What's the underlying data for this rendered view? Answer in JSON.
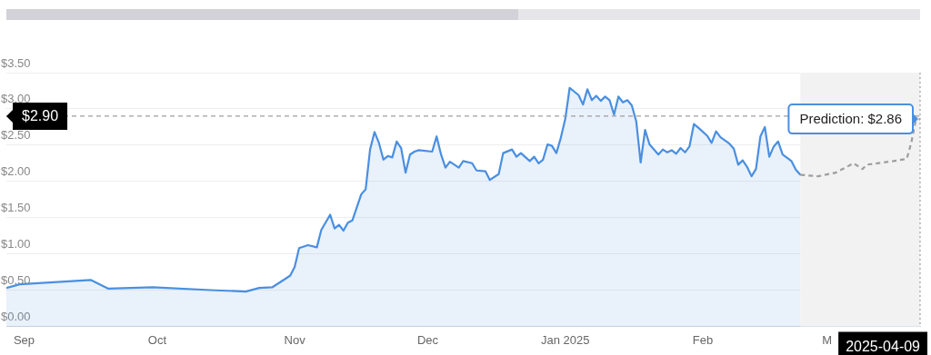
{
  "chart_data": {
    "type": "line",
    "xlim": [
      "2024-08-28",
      "2025-03-22"
    ],
    "xticks": [
      {
        "value": "2024-09-01",
        "label": "Sep"
      },
      {
        "value": "2024-10-01",
        "label": "Oct"
      },
      {
        "value": "2024-11-01",
        "label": "Nov"
      },
      {
        "value": "2024-12-01",
        "label": "Dec"
      },
      {
        "value": "2025-01-01",
        "label": "Jan 2025"
      },
      {
        "value": "2025-02-01",
        "label": "Feb"
      },
      {
        "value": "2025-03-01",
        "label": "M"
      }
    ],
    "ylim": [
      0,
      3.5
    ],
    "yticks": [
      {
        "value": 0,
        "label": "$0.00"
      },
      {
        "value": 0.5,
        "label": "$0.50"
      },
      {
        "value": 1,
        "label": "$1.00"
      },
      {
        "value": 1.5,
        "label": "$1.50"
      },
      {
        "value": 2,
        "label": "$2.00"
      },
      {
        "value": 2.5,
        "label": "$2.50"
      },
      {
        "value": 3,
        "label": "$3.00"
      },
      {
        "value": 3.5,
        "label": "$3.50"
      }
    ],
    "grid": "y",
    "legend": false,
    "marker": "none",
    "series": [
      {
        "type": "area",
        "color": "#4a8fe0",
        "x": [
          "2024-08-28",
          "2024-08-31",
          "2024-09-16",
          "2024-09-20",
          "2024-09-30",
          "2024-10-13",
          "2024-10-21",
          "2024-10-24",
          "2024-10-27",
          "2024-10-30",
          "2024-10-31",
          "2024-11-01",
          "2024-11-02",
          "2024-11-04",
          "2024-11-06",
          "2024-11-07",
          "2024-11-09",
          "2024-11-10",
          "2024-11-11",
          "2024-11-12",
          "2024-11-13",
          "2024-11-14",
          "2024-11-16",
          "2024-11-17",
          "2024-11-18",
          "2024-11-19",
          "2024-11-20",
          "2024-11-21",
          "2024-11-22",
          "2024-11-23",
          "2024-11-24",
          "2024-11-25",
          "2024-11-26",
          "2024-11-27",
          "2024-11-28",
          "2024-11-29",
          "2024-12-02",
          "2024-12-03",
          "2024-12-04",
          "2024-12-05",
          "2024-12-06",
          "2024-12-08",
          "2024-12-09",
          "2024-12-11",
          "2024-12-12",
          "2024-12-14",
          "2024-12-15",
          "2024-12-17",
          "2024-12-18",
          "2024-12-20",
          "2024-12-21",
          "2024-12-22",
          "2024-12-24",
          "2024-12-25",
          "2024-12-26",
          "2024-12-27",
          "2024-12-28",
          "2024-12-29",
          "2024-12-30",
          "2024-12-31",
          "2025-01-01",
          "2025-01-02",
          "2025-01-04",
          "2025-01-05",
          "2025-01-06",
          "2025-01-07",
          "2025-01-08",
          "2025-01-09",
          "2025-01-10",
          "2025-01-11",
          "2025-01-12",
          "2025-01-13",
          "2025-01-14",
          "2025-01-15",
          "2025-01-16",
          "2025-01-17",
          "2025-01-18",
          "2025-01-19",
          "2025-01-20",
          "2025-01-22",
          "2025-01-23",
          "2025-01-24",
          "2025-01-25",
          "2025-01-26",
          "2025-01-27",
          "2025-01-28",
          "2025-01-29",
          "2025-01-30",
          "2025-01-31",
          "2025-02-02",
          "2025-02-03",
          "2025-02-04",
          "2025-02-05",
          "2025-02-07",
          "2025-02-08",
          "2025-02-09",
          "2025-02-10",
          "2025-02-11",
          "2025-02-12",
          "2025-02-13",
          "2025-02-14",
          "2025-02-15",
          "2025-02-16",
          "2025-02-17",
          "2025-02-18",
          "2025-02-19",
          "2025-02-21",
          "2025-02-22",
          "2025-02-23"
        ],
        "values": [
          0.53,
          0.58,
          0.64,
          0.52,
          0.54,
          0.5,
          0.48,
          0.53,
          0.54,
          0.66,
          0.7,
          0.82,
          1.08,
          1.12,
          1.09,
          1.33,
          1.54,
          1.35,
          1.4,
          1.32,
          1.43,
          1.46,
          1.82,
          1.89,
          2.44,
          2.68,
          2.53,
          2.3,
          2.35,
          2.33,
          2.55,
          2.46,
          2.12,
          2.37,
          2.41,
          2.43,
          2.41,
          2.62,
          2.37,
          2.19,
          2.27,
          2.19,
          2.28,
          2.25,
          2.15,
          2.14,
          2.02,
          2.1,
          2.39,
          2.44,
          2.34,
          2.39,
          2.28,
          2.34,
          2.25,
          2.3,
          2.51,
          2.49,
          2.39,
          2.6,
          2.86,
          3.29,
          3.19,
          3.06,
          3.27,
          3.12,
          3.18,
          3.11,
          3.17,
          3.12,
          2.92,
          3.17,
          3.09,
          3.12,
          3.05,
          2.83,
          2.26,
          2.71,
          2.51,
          2.37,
          2.44,
          2.4,
          2.43,
          2.38,
          2.46,
          2.4,
          2.48,
          2.79,
          2.74,
          2.63,
          2.53,
          2.69,
          2.61,
          2.52,
          2.45,
          2.23,
          2.29,
          2.2,
          2.07,
          2.17,
          2.62,
          2.75,
          2.34,
          2.48,
          2.55,
          2.37,
          2.28,
          2.16,
          2.09
        ]
      },
      {
        "color": "#9e9e9e",
        "line_style": "dashed",
        "x": [
          "2025-02-23",
          "2025-02-27",
          "2025-03-03",
          "2025-03-07",
          "2025-03-09",
          "2025-03-10",
          "2025-03-16",
          "2025-03-19",
          "2025-03-20",
          "2025-03-21",
          "2025-03-22"
        ],
        "values": [
          2.09,
          2.07,
          2.12,
          2.25,
          2.17,
          2.23,
          2.28,
          2.31,
          2.53,
          2.83,
          2.86
        ]
      }
    ],
    "bands": [
      {
        "axis": "x",
        "from": "2025-02-23",
        "to": "2025-03-22",
        "color": "#f2f2f2"
      }
    ],
    "ref_lines": [
      {
        "axis": "y",
        "value": 2.9,
        "label": "$2.90",
        "color": "#9e9e9e",
        "line_style": "dashed"
      },
      {
        "axis": "x",
        "value": "2025-03-22",
        "color": "#9e9e9e",
        "line_style": "dotted"
      }
    ],
    "annotations": [
      {
        "text": "Prediction: $2.86",
        "x": "2025-03-22",
        "y": 2.86
      },
      "2025-04-09"
    ]
  }
}
